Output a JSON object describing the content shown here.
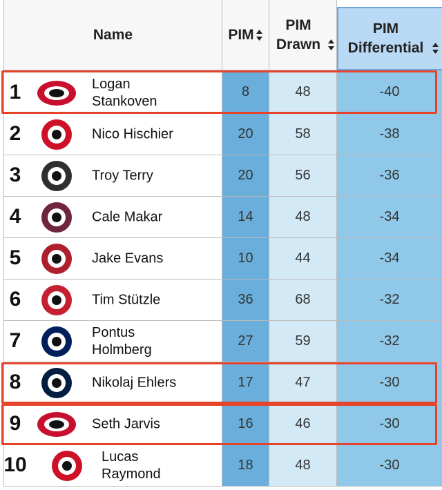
{
  "table": {
    "columns": [
      "Name",
      "PIM",
      "PIM Drawn",
      "PIM Differential"
    ],
    "rows": [
      {
        "rank": 1,
        "name": "Logan Stankoven",
        "pim": 8,
        "drawn": 48,
        "diff": -40
      },
      {
        "rank": 2,
        "name": "Nico Hischier",
        "pim": 20,
        "drawn": 58,
        "diff": -38
      },
      {
        "rank": 3,
        "name": "Troy Terry",
        "pim": 20,
        "drawn": 56,
        "diff": -36
      },
      {
        "rank": 4,
        "name": "Cale Makar",
        "pim": 14,
        "drawn": 48,
        "diff": -34
      },
      {
        "rank": 5,
        "name": "Jake Evans",
        "pim": 10,
        "drawn": 44,
        "diff": -34
      },
      {
        "rank": 6,
        "name": "Tim Stützle",
        "pim": 36,
        "drawn": 68,
        "diff": -32
      },
      {
        "rank": 7,
        "name": "Pontus Holmberg",
        "pim": 27,
        "drawn": 59,
        "diff": -32
      },
      {
        "rank": 8,
        "name": "Nikolaj Ehlers",
        "pim": 17,
        "drawn": 47,
        "diff": -30
      },
      {
        "rank": 9,
        "name": "Seth Jarvis",
        "pim": 16,
        "drawn": 46,
        "diff": -30
      },
      {
        "rank": 10,
        "name": "Lucas Raymond",
        "pim": 18,
        "drawn": 48,
        "diff": -30
      }
    ]
  }
}
